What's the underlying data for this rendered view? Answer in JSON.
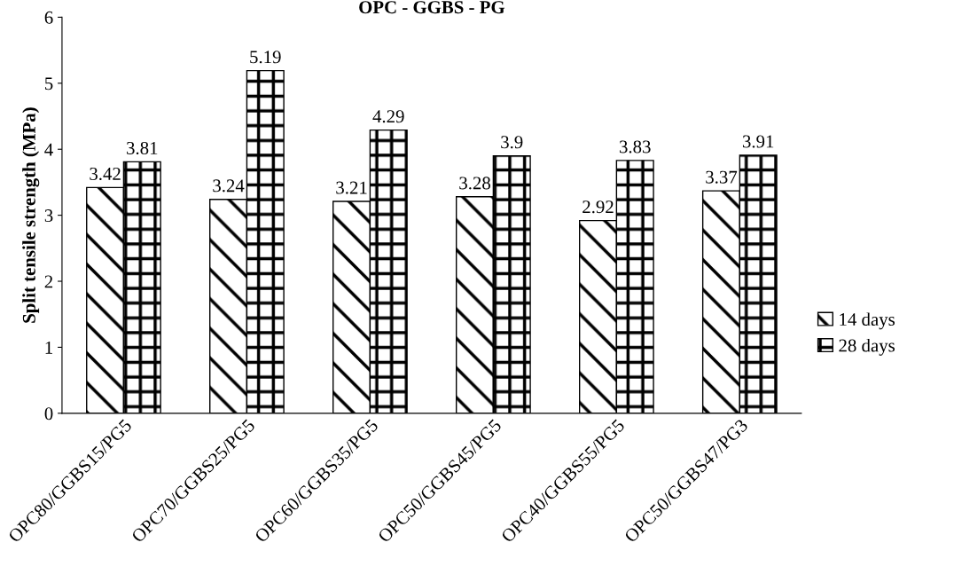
{
  "chart_data": {
    "type": "bar",
    "title": "OPC - GGBS - PG",
    "ylabel": "Split tensile strength (MPa)",
    "categories": [
      "OPC80/GGBS15/PG5",
      "OPC70/GGBS25/PG5",
      "OPC60/GGBS35/PG5",
      "OPC50/GGBS45/PG5",
      "OPC40/GGBS55/PG5",
      "OPC50/GGBS47/PG3"
    ],
    "series": [
      {
        "name": "14 days",
        "color": "#ffffff",
        "values": [
          3.42,
          3.24,
          3.21,
          3.28,
          2.92,
          3.37
        ]
      },
      {
        "name": "28 days",
        "color": "#ffffff",
        "values": [
          3.81,
          5.19,
          4.29,
          3.9,
          3.83,
          3.91
        ]
      }
    ],
    "ylim": [
      0,
      6
    ],
    "yticks": [
      0,
      1,
      2,
      3,
      4,
      5,
      6
    ],
    "data_labels": true,
    "legend": "right",
    "grid": false
  }
}
